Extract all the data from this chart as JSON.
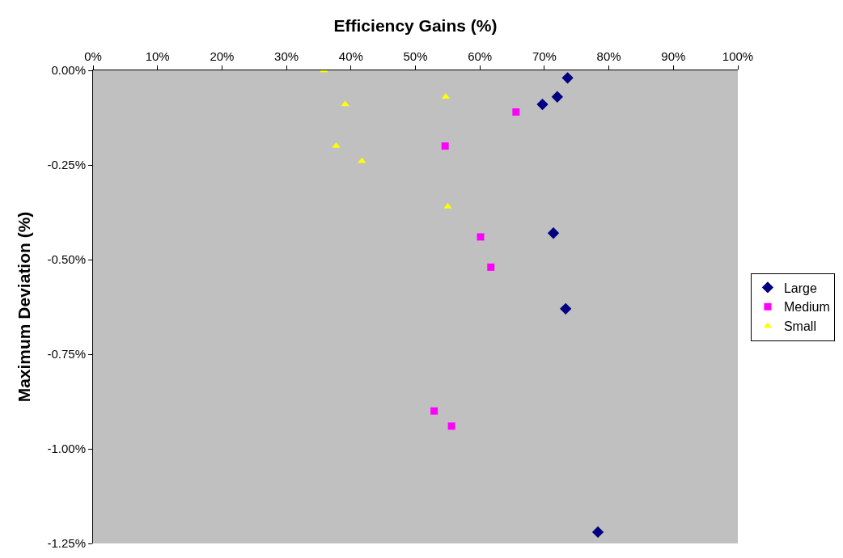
{
  "chart_data": {
    "type": "scatter",
    "xlabel": "Efficiency Gains (%)",
    "ylabel": "Maximum Deviation (%)",
    "xlim": [
      0,
      100
    ],
    "xticks": [
      {
        "value": 0,
        "label": "0%"
      },
      {
        "value": 10,
        "label": "10%"
      },
      {
        "value": 20,
        "label": "20%"
      },
      {
        "value": 30,
        "label": "30%"
      },
      {
        "value": 40,
        "label": "40%"
      },
      {
        "value": 50,
        "label": "50%"
      },
      {
        "value": 60,
        "label": "60%"
      },
      {
        "value": 70,
        "label": "70%"
      },
      {
        "value": 80,
        "label": "80%"
      },
      {
        "value": 90,
        "label": "90%"
      },
      {
        "value": 100,
        "label": "100%"
      }
    ],
    "ylim": [
      -1.25,
      0
    ],
    "yticks": [
      {
        "value": 0,
        "label": "0.00%"
      },
      {
        "value": -0.25,
        "label": "-0.25%"
      },
      {
        "value": -0.5,
        "label": "-0.50%"
      },
      {
        "value": -0.75,
        "label": "-0.75%"
      },
      {
        "value": -1.0,
        "label": "-1.00%"
      },
      {
        "value": -1.25,
        "label": "-1.25%"
      }
    ],
    "grid": false,
    "legend": "right",
    "series": [
      {
        "name": "Large",
        "color": "#000080",
        "marker": "diamond",
        "x": [
          73.6,
          69.7,
          72.0,
          71.4,
          73.3,
          78.3
        ],
        "values": [
          -0.02,
          -0.09,
          -0.07,
          -0.43,
          -0.63,
          -1.22
        ]
      },
      {
        "name": "Medium",
        "color": "#ff00ff",
        "marker": "square",
        "x": [
          65.6,
          54.6,
          60.1,
          61.7,
          52.9,
          55.6
        ],
        "values": [
          -0.11,
          -0.2,
          -0.44,
          -0.52,
          -0.9,
          -0.94
        ]
      },
      {
        "name": "Small",
        "color": "#ffff00",
        "marker": "triangle",
        "x": [
          35.8,
          39.1,
          54.7,
          37.7,
          41.7,
          55.0
        ],
        "values": [
          0.0,
          -0.09,
          -0.07,
          -0.2,
          -0.24,
          -0.36
        ]
      }
    ]
  }
}
